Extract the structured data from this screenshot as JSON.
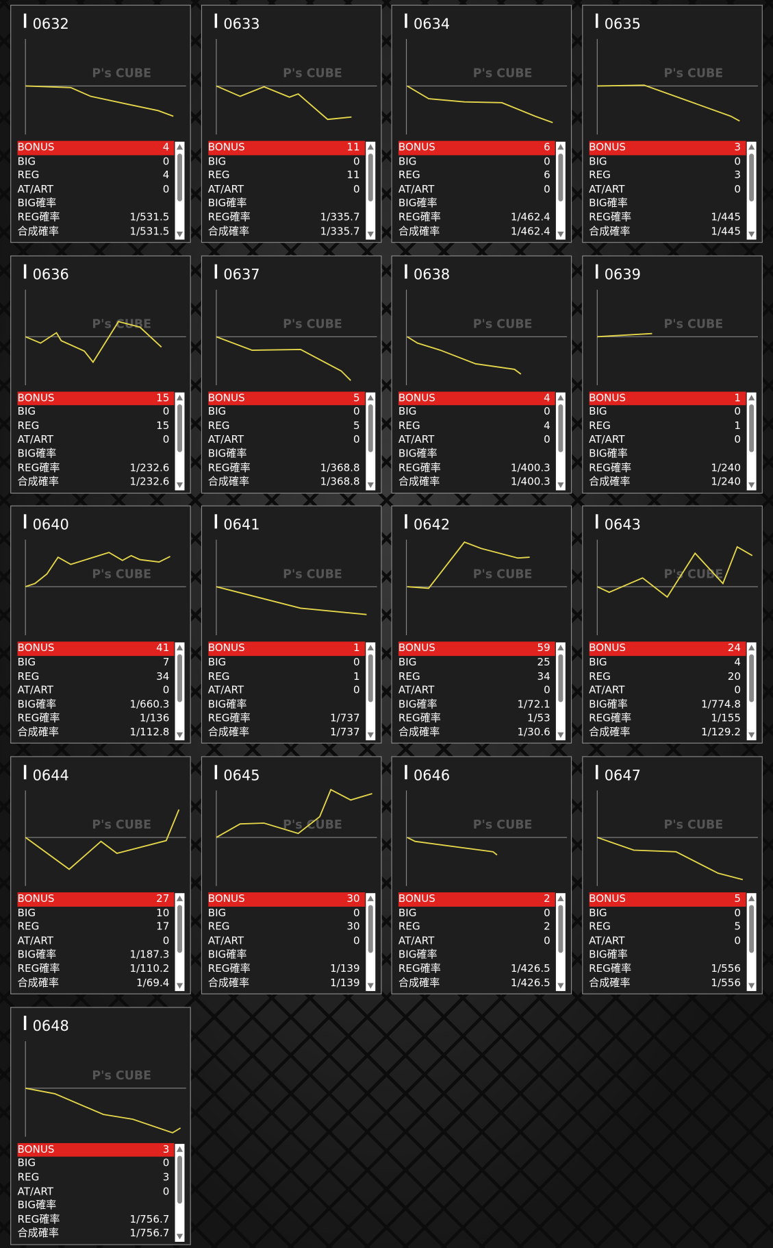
{
  "watermark": "P's CUBE",
  "row_labels": [
    "BONUS",
    "BIG",
    "REG",
    "AT/ART",
    "BIG確率",
    "REG確率",
    "合成確率"
  ],
  "machines": [
    {
      "id": "0632",
      "stats": [
        4,
        0,
        4,
        0,
        null,
        "1/531.5",
        "1/531.5"
      ],
      "graph_x": [
        0,
        28.5,
        41,
        64.5,
        83.5,
        93
      ],
      "graph_y": [
        0,
        -2,
        -13,
        -23,
        -31,
        -38
      ]
    },
    {
      "id": "0633",
      "stats": [
        11,
        0,
        11,
        0,
        null,
        "1/335.7",
        "1/335.7"
      ],
      "graph_x": [
        0,
        15,
        30,
        46,
        51.5,
        70,
        85
      ],
      "graph_y": [
        0,
        -13,
        -1,
        -14,
        -10,
        -42,
        -39
      ]
    },
    {
      "id": "0634",
      "stats": [
        6,
        0,
        6,
        0,
        null,
        "1/462.4",
        "1/462.4"
      ],
      "graph_x": [
        0.5,
        14,
        36.5,
        60,
        81,
        92
      ],
      "graph_y": [
        0,
        -16,
        -20,
        -21,
        -38,
        -46
      ]
    },
    {
      "id": "0635",
      "stats": [
        3,
        0,
        3,
        0,
        null,
        "1/445",
        "1/445"
      ],
      "graph_x": [
        0,
        29.5,
        84,
        89.5
      ],
      "graph_y": [
        0,
        1,
        -38,
        -44
      ]
    },
    {
      "id": "0636",
      "stats": [
        15,
        0,
        15,
        0,
        null,
        "1/232.6",
        "1/232.6"
      ],
      "graph_x": [
        0,
        9.5,
        19.5,
        22.5,
        37,
        42.5,
        58.5,
        72,
        85.5
      ],
      "graph_y": [
        0,
        -8,
        5,
        -5,
        -18,
        -32,
        19,
        12,
        -13
      ]
    },
    {
      "id": "0637",
      "stats": [
        5,
        0,
        5,
        0,
        null,
        "1/368.8",
        "1/368.8"
      ],
      "graph_x": [
        0,
        22.5,
        53,
        78.5,
        84.5
      ],
      "graph_y": [
        0,
        -17,
        -16,
        -43,
        -55
      ]
    },
    {
      "id": "0638",
      "stats": [
        4,
        0,
        4,
        0,
        null,
        "1/400.3",
        "1/400.3"
      ],
      "graph_x": [
        0.5,
        7,
        21.5,
        43.5,
        68,
        72
      ],
      "graph_y": [
        0,
        -8,
        -17,
        -34,
        -41,
        -47
      ]
    },
    {
      "id": "0639",
      "stats": [
        1,
        0,
        1,
        0,
        null,
        "1/240",
        "1/240"
      ],
      "graph_x": [
        0,
        34.5
      ],
      "graph_y": [
        0,
        4
      ]
    },
    {
      "id": "0640",
      "stats": [
        41,
        7,
        34,
        0,
        "1/660.3",
        "1/136",
        "1/112.8"
      ],
      "graph_x": [
        0,
        6,
        13.5,
        20.5,
        28.5,
        52.5,
        61,
        66.5,
        72,
        84,
        91
      ],
      "graph_y": [
        0,
        4,
        16,
        37,
        28,
        43,
        33,
        39,
        34,
        31,
        38
      ]
    },
    {
      "id": "0641",
      "stats": [
        1,
        0,
        1,
        0,
        null,
        "1/737",
        "1/737"
      ],
      "graph_x": [
        0,
        53,
        94.5
      ],
      "graph_y": [
        0,
        -27,
        -35
      ]
    },
    {
      "id": "0642",
      "stats": [
        59,
        25,
        34,
        0,
        "1/72.1",
        "1/53",
        "1/30.6"
      ],
      "graph_x": [
        0.5,
        14,
        36.5,
        47,
        70,
        77.5
      ],
      "graph_y": [
        0,
        -2,
        56,
        48,
        36,
        37
      ]
    },
    {
      "id": "0643",
      "stats": [
        24,
        4,
        20,
        0,
        "1/774.8",
        "1/155",
        "1/129.2"
      ],
      "graph_x": [
        0,
        7.5,
        28.5,
        44,
        61.5,
        79,
        88,
        97.5
      ],
      "graph_y": [
        0,
        -7,
        11,
        -13,
        42,
        4,
        50,
        39
      ]
    },
    {
      "id": "0644",
      "stats": [
        27,
        10,
        17,
        0,
        "1/187.3",
        "1/110.2",
        "1/69.4"
      ],
      "graph_x": [
        0,
        27.5,
        47.5,
        57.5,
        88.5,
        96.5
      ],
      "graph_y": [
        0,
        -40,
        -5,
        -20,
        -4,
        35
      ]
    },
    {
      "id": "0645",
      "stats": [
        30,
        0,
        30,
        0,
        null,
        "1/139",
        "1/139"
      ],
      "graph_x": [
        0,
        15,
        30,
        51.5,
        65,
        72,
        84.5,
        98
      ],
      "graph_y": [
        0,
        17,
        18,
        5,
        26,
        60,
        47,
        55
      ]
    },
    {
      "id": "0646",
      "stats": [
        2,
        0,
        2,
        0,
        null,
        "1/426.5",
        "1/426.5"
      ],
      "graph_x": [
        0.5,
        5.5,
        54.5,
        57
      ],
      "graph_y": [
        0,
        -5,
        -18,
        -22
      ]
    },
    {
      "id": "0647",
      "stats": [
        5,
        0,
        5,
        0,
        null,
        "1/556",
        "1/556"
      ],
      "graph_x": [
        0,
        23,
        49.5,
        76,
        91.5
      ],
      "graph_y": [
        0,
        -16,
        -18,
        -45,
        -53
      ]
    },
    {
      "id": "0648",
      "stats": [
        3,
        0,
        3,
        0,
        null,
        "1/756.7",
        "1/756.7"
      ],
      "graph_x": [
        0,
        18.5,
        49,
        67.5,
        92.5,
        97.5
      ],
      "graph_y": [
        0,
        -7,
        -33,
        -39,
        -56,
        -50
      ]
    }
  ]
}
